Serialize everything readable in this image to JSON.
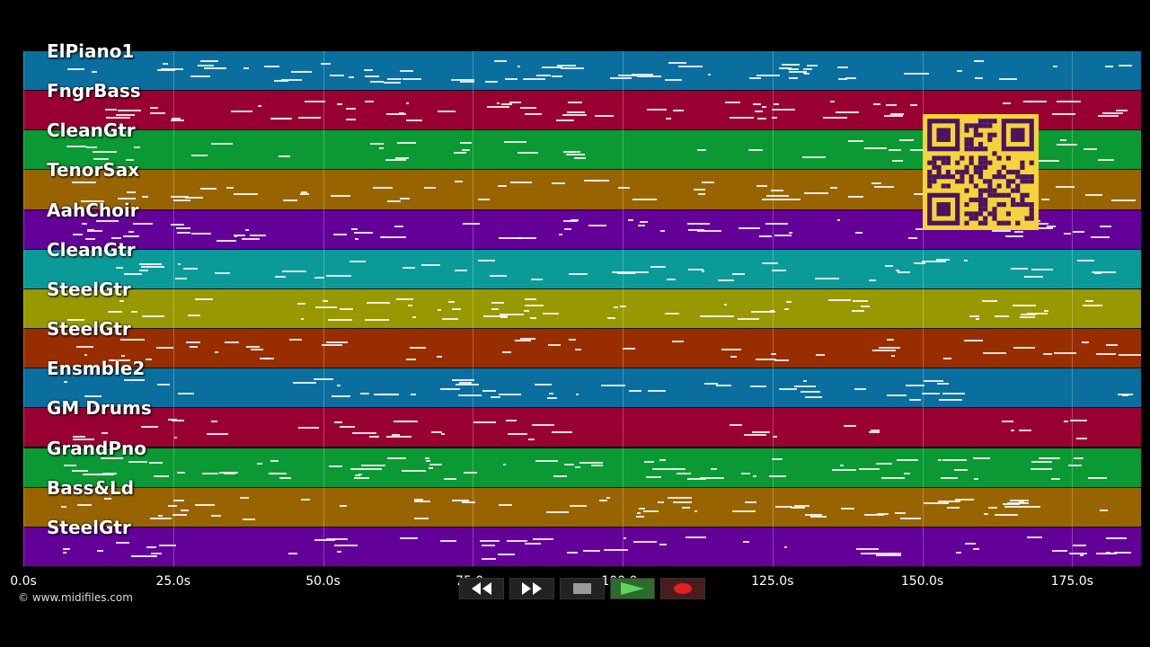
{
  "tracks": [
    {
      "name": "ElPiano1",
      "color": "#0a6e9e"
    },
    {
      "name": "FngrBass",
      "color": "#980032"
    },
    {
      "name": "CleanGtr",
      "color": "#0a9932"
    },
    {
      "name": "TenorSax",
      "color": "#986400"
    },
    {
      "name": "AahChoir",
      "color": "#620098"
    },
    {
      "name": "CleanGtr",
      "color": "#0a9a98"
    },
    {
      "name": "SteelGtr",
      "color": "#989800"
    },
    {
      "name": "SteelGtr",
      "color": "#982e00"
    },
    {
      "name": "Ensmble2",
      "color": "#0a6e9e"
    },
    {
      "name": "GM Drums",
      "color": "#980032"
    },
    {
      "name": "GrandPno",
      "color": "#0a9932"
    },
    {
      "name": "Bass&Ld",
      "color": "#986400"
    },
    {
      "name": "SteelGtr",
      "color": "#620098"
    }
  ],
  "axis": {
    "ticks": [
      "0.0s",
      "25.0s",
      "50.0s",
      "75.0s",
      "100.0s",
      "125.0s",
      "150.0s",
      "175.0s"
    ],
    "tick_values": [
      0,
      25,
      50,
      75,
      100,
      125,
      150,
      175
    ],
    "max_seconds": 186.5
  },
  "copyright": "© www.midifiles.com",
  "transport": {
    "rewind": "rewind-icon",
    "fast_forward": "fast-forward-icon",
    "stop": "stop-icon",
    "play": "play-icon",
    "record": "record-icon"
  },
  "qr_code": "qr-code"
}
